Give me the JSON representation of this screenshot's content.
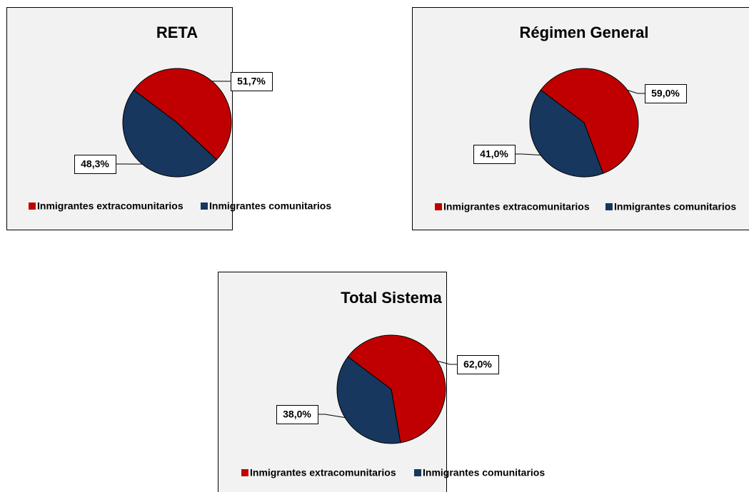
{
  "chart_data": [
    {
      "type": "pie",
      "title": "RETA",
      "categories": [
        "Inmigrantes extracomunitarios",
        "Inmigrantes comunitarios"
      ],
      "values": [
        51.7,
        48.3
      ],
      "value_labels": [
        "51,7%",
        "48,3%"
      ],
      "colors": [
        "#c00000",
        "#17375e"
      ]
    },
    {
      "type": "pie",
      "title": "Régimen General",
      "categories": [
        "Inmigrantes extracomunitarios",
        "Inmigrantes comunitarios"
      ],
      "values": [
        59.0,
        41.0
      ],
      "value_labels": [
        "59,0%",
        "41,0%"
      ],
      "colors": [
        "#c00000",
        "#17375e"
      ]
    },
    {
      "type": "pie",
      "title": "Total Sistema",
      "categories": [
        "Inmigrantes extracomunitarios",
        "Inmigrantes comunitarios"
      ],
      "values": [
        62.0,
        38.0
      ],
      "value_labels": [
        "62,0%",
        "38,0%"
      ],
      "colors": [
        "#c00000",
        "#17375e"
      ]
    }
  ]
}
